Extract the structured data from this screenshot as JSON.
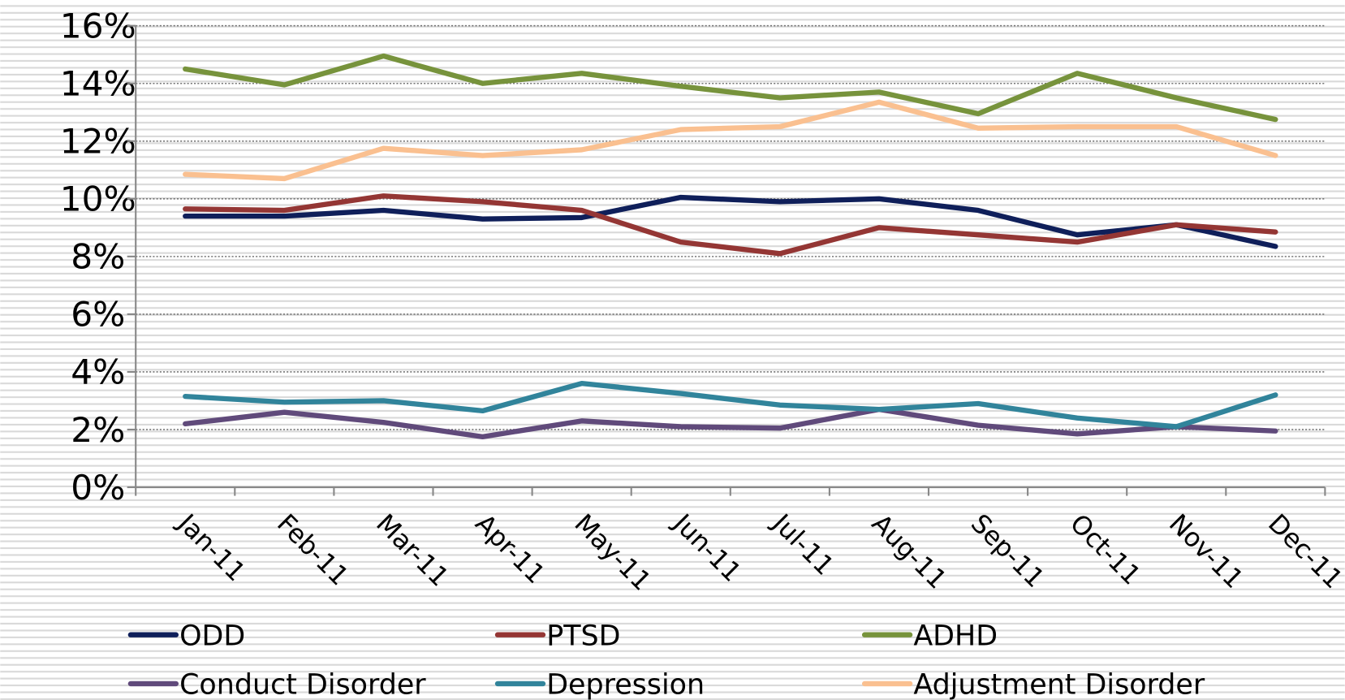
{
  "chart_data": {
    "type": "line",
    "categories": [
      "Jan-11",
      "Feb-11",
      "Mar-11",
      "Apr-11",
      "May-11",
      "Jun-11",
      "Jul-11",
      "Aug-11",
      "Sep-11",
      "Oct-11",
      "Nov-11",
      "Dec-11"
    ],
    "series": [
      {
        "name": "ODD",
        "color": "#0f1f5a",
        "values": [
          9.4,
          9.4,
          9.6,
          9.3,
          9.35,
          10.05,
          9.9,
          10.0,
          9.6,
          8.75,
          9.1,
          8.35
        ]
      },
      {
        "name": "PTSD",
        "color": "#943634",
        "values": [
          9.65,
          9.6,
          10.1,
          9.9,
          9.6,
          8.5,
          8.1,
          9.0,
          8.75,
          8.5,
          9.1,
          8.85
        ]
      },
      {
        "name": "ADHD",
        "color": "#77933c",
        "values": [
          14.5,
          13.95,
          14.95,
          14.0,
          14.35,
          13.9,
          13.5,
          13.7,
          12.95,
          14.35,
          13.5,
          12.75
        ]
      },
      {
        "name": "Conduct Disorder",
        "color": "#604a7b",
        "values": [
          2.2,
          2.6,
          2.25,
          1.75,
          2.3,
          2.1,
          2.05,
          2.7,
          2.15,
          1.85,
          2.1,
          1.95
        ]
      },
      {
        "name": "Depression",
        "color": "#31849b",
        "values": [
          3.15,
          2.95,
          3.0,
          2.65,
          3.6,
          3.25,
          2.85,
          2.7,
          2.9,
          2.4,
          2.1,
          3.2
        ]
      },
      {
        "name": "Adjustment Disorder",
        "color": "#fac090",
        "values": [
          10.85,
          10.7,
          11.75,
          11.5,
          11.7,
          12.4,
          12.5,
          13.35,
          12.45,
          12.5,
          12.5,
          11.5
        ]
      }
    ],
    "ylim": [
      0,
      16
    ],
    "yticks": [
      {
        "value": 0,
        "label": "0%"
      },
      {
        "value": 2,
        "label": "2%"
      },
      {
        "value": 4,
        "label": "4%"
      },
      {
        "value": 6,
        "label": "6%"
      },
      {
        "value": 8,
        "label": "8%"
      },
      {
        "value": 10,
        "label": "10%"
      },
      {
        "value": 12,
        "label": "12%"
      },
      {
        "value": 14,
        "label": "14%"
      },
      {
        "value": 16,
        "label": "16%"
      }
    ],
    "grid": true,
    "legend": "bottom"
  }
}
